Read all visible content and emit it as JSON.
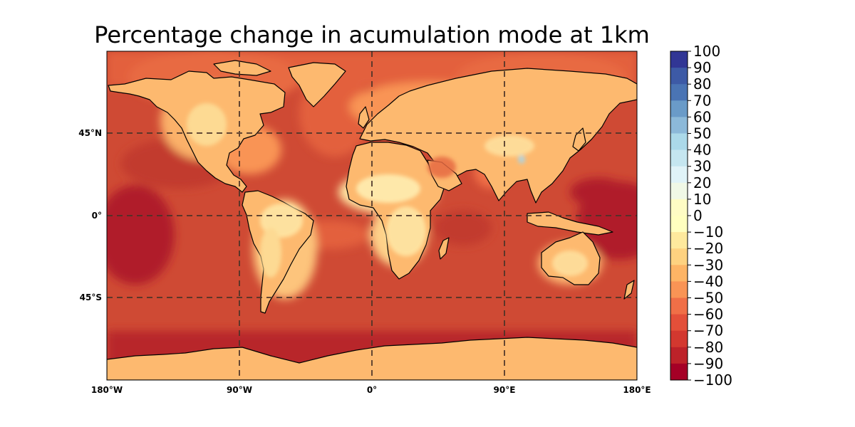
{
  "title": "Percentage change in acumulation mode at 1km",
  "lon_ticks": [
    {
      "value": -180,
      "label": "180°W"
    },
    {
      "value": -90,
      "label": "90°W"
    },
    {
      "value": 0,
      "label": "0°"
    },
    {
      "value": 90,
      "label": "90°E"
    },
    {
      "value": 180,
      "label": "180°E"
    }
  ],
  "lat_ticks": [
    {
      "value": 45,
      "label": "45°N"
    },
    {
      "value": 0,
      "label": "0°"
    },
    {
      "value": -45,
      "label": "45°S"
    }
  ],
  "map_extent": {
    "lon": [
      -180,
      180
    ],
    "lat": [
      -90,
      90
    ]
  },
  "gridlines": {
    "style": "dashed",
    "color": "#4a3328",
    "lon": [
      -90,
      0,
      90
    ],
    "lat": [
      45,
      0,
      -45
    ]
  },
  "colorbar": {
    "labels": [
      "100",
      "90",
      "80",
      "70",
      "60",
      "50",
      "40",
      "30",
      "20",
      "10",
      "0",
      "−10",
      "−20",
      "−30",
      "−40",
      "−50",
      "−60",
      "−70",
      "−80",
      "−90",
      "−100"
    ],
    "colors": [
      "#313695",
      "#3d5aa6",
      "#4a74b4",
      "#6a9bc8",
      "#8cb9d9",
      "#abd9e9",
      "#c5e6f0",
      "#e0f3f8",
      "#f0f8e6",
      "#fefcc4",
      "#ffffbf",
      "#fee99d",
      "#fed280",
      "#fdb465",
      "#f99455",
      "#f06f47",
      "#e34f39",
      "#d3382f",
      "#bd2229",
      "#a50026"
    ]
  },
  "ocean_color": "#cf4a34",
  "coastline_color": "#000000"
}
